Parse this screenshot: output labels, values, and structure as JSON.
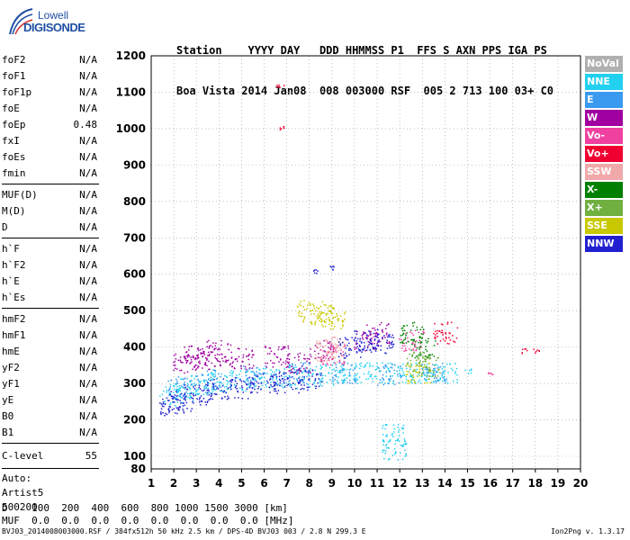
{
  "logo": {
    "line1": "Lowell",
    "line2": "DIGISONDE"
  },
  "header": {
    "line1": "Station    YYYY DAY   DDD HHMMSS P1  FFS S AXN PPS IGA PS",
    "line2": "Boa Vista 2014 Jan08  008 003000 RSF  005 2 713 100 03+ C0"
  },
  "params": {
    "group1": [
      {
        "name": "foF2",
        "value": "N/A"
      },
      {
        "name": "foF1",
        "value": "N/A"
      },
      {
        "name": "foF1p",
        "value": "N/A"
      },
      {
        "name": "foE",
        "value": "N/A"
      },
      {
        "name": "foEp",
        "value": "0.48"
      },
      {
        "name": "fxI",
        "value": "N/A"
      },
      {
        "name": "foEs",
        "value": "N/A"
      },
      {
        "name": "fmin",
        "value": "N/A"
      }
    ],
    "group2": [
      {
        "name": "MUF(D)",
        "value": "N/A"
      },
      {
        "name": "M(D)",
        "value": "N/A"
      },
      {
        "name": "D",
        "value": "N/A"
      }
    ],
    "group3": [
      {
        "name": "h`F",
        "value": "N/A"
      },
      {
        "name": "h`F2",
        "value": "N/A"
      },
      {
        "name": "h`E",
        "value": "N/A"
      },
      {
        "name": "h`Es",
        "value": "N/A"
      }
    ],
    "group4": [
      {
        "name": "hmF2",
        "value": "N/A"
      },
      {
        "name": "hmF1",
        "value": "N/A"
      },
      {
        "name": "hmE",
        "value": "N/A"
      },
      {
        "name": "yF2",
        "value": "N/A"
      },
      {
        "name": "yF1",
        "value": "N/A"
      },
      {
        "name": "yE",
        "value": "N/A"
      },
      {
        "name": "B0",
        "value": "N/A"
      },
      {
        "name": "B1",
        "value": "N/A"
      }
    ],
    "clevel": {
      "name": "C-level",
      "value": "55"
    }
  },
  "auto": {
    "line1": "Auto:",
    "line2": "Artist5",
    "line3": "500200"
  },
  "legend": [
    {
      "label": "NoVal",
      "color": "#b0b0b0"
    },
    {
      "label": "NNE",
      "color": "#22d0f0"
    },
    {
      "label": "E",
      "color": "#3a9af0"
    },
    {
      "label": "W",
      "color": "#a000a0"
    },
    {
      "label": "Vo-",
      "color": "#f040a0"
    },
    {
      "label": "Vo+",
      "color": "#f00030"
    },
    {
      "label": "SSW",
      "color": "#f0a8a8"
    },
    {
      "label": "X-",
      "color": "#008000"
    },
    {
      "label": "X+",
      "color": "#70b040"
    },
    {
      "label": "SSE",
      "color": "#c8c800"
    },
    {
      "label": "NNW",
      "color": "#2020d0"
    }
  ],
  "bottom": {
    "d_row": "D    100  200  400  600  800 1000 1500 3000 [km]",
    "muf_row": "MUF  0.0  0.0  0.0  0.0  0.0  0.0  0.0  0.0 [MHz]"
  },
  "footer": {
    "left": "BVJ03_2014008003000.RSF / 384fx512h 50 kHz 2.5 km / DPS-4D BVJ03 003 / 2.8 N 299.3 E",
    "right": "Ion2Png v. 1.3.17"
  },
  "chart_data": {
    "type": "scatter",
    "title": "",
    "xlabel": "",
    "ylabel": "",
    "xlim": [
      1,
      20
    ],
    "ylim": [
      80,
      1200
    ],
    "x_ticks": [
      1,
      2,
      3,
      4,
      5,
      6,
      7,
      8,
      9,
      10,
      11,
      12,
      13,
      14,
      15,
      16,
      17,
      18,
      19,
      20
    ],
    "y_ticks": [
      80,
      100,
      200,
      300,
      400,
      500,
      600,
      700,
      800,
      900,
      1000,
      1100,
      1200
    ],
    "grid": true,
    "legend_position": "right",
    "series": [
      {
        "name": "NNE",
        "color": "#22d0f0",
        "points": [
          [
            1.9,
            270
          ],
          [
            2.5,
            285
          ],
          [
            3.2,
            300
          ],
          [
            4.0,
            305
          ],
          [
            5.0,
            310
          ],
          [
            6.0,
            315
          ],
          [
            7.0,
            318
          ],
          [
            8.0,
            322
          ],
          [
            9.0,
            325
          ],
          [
            10.0,
            328
          ],
          [
            11.0,
            330
          ],
          [
            12.0,
            330
          ],
          [
            13.0,
            328
          ],
          [
            14.0,
            330
          ],
          [
            15.0,
            335
          ],
          [
            11.75,
            120
          ],
          [
            11.75,
            160
          ]
        ]
      },
      {
        "name": "E",
        "color": "#3a9af0",
        "points": [
          [
            2.2,
            290
          ],
          [
            3.5,
            310
          ],
          [
            5.5,
            320
          ],
          [
            7.5,
            330
          ],
          [
            9.5,
            330
          ],
          [
            11.5,
            325
          ],
          [
            13.5,
            330
          ]
        ]
      },
      {
        "name": "W",
        "color": "#a000a0",
        "points": [
          [
            2.5,
            360
          ],
          [
            3.0,
            380
          ],
          [
            3.5,
            370
          ],
          [
            4.0,
            390
          ],
          [
            5.0,
            370
          ],
          [
            6.5,
            375
          ],
          [
            7.5,
            360
          ],
          [
            8.5,
            390
          ],
          [
            10.5,
            420
          ],
          [
            11.0,
            440
          ]
        ]
      },
      {
        "name": "Vo-",
        "color": "#f040a0",
        "points": [
          [
            9.0,
            380
          ],
          [
            12.5,
            420
          ],
          [
            16.0,
            330
          ]
        ]
      },
      {
        "name": "Vo+",
        "color": "#f00030",
        "points": [
          [
            6.7,
            1115
          ],
          [
            6.7,
            1000
          ],
          [
            14.0,
            440
          ],
          [
            17.5,
            390
          ],
          [
            18.0,
            390
          ]
        ]
      },
      {
        "name": "SSW",
        "color": "#f0a8a8",
        "points": [
          [
            9.0,
            400
          ],
          [
            8.8,
            390
          ]
        ]
      },
      {
        "name": "X-",
        "color": "#008000",
        "points": [
          [
            12.5,
            440
          ],
          [
            13.0,
            400
          ]
        ]
      },
      {
        "name": "X+",
        "color": "#70b040",
        "points": [
          [
            12.8,
            360
          ],
          [
            13.2,
            350
          ]
        ]
      },
      {
        "name": "SSE",
        "color": "#c8c800",
        "points": [
          [
            8.0,
            500
          ],
          [
            8.5,
            490
          ],
          [
            9.0,
            480
          ],
          [
            12.8,
            330
          ]
        ]
      },
      {
        "name": "NNW",
        "color": "#2020d0",
        "points": [
          [
            1.9,
            240
          ],
          [
            2.3,
            250
          ],
          [
            3.0,
            270
          ],
          [
            4.0,
            285
          ],
          [
            5.0,
            290
          ],
          [
            6.0,
            300
          ],
          [
            7.0,
            305
          ],
          [
            8.0,
            310
          ],
          [
            8.3,
            610
          ],
          [
            9.0,
            620
          ],
          [
            9.8,
            400
          ],
          [
            10.5,
            420
          ],
          [
            11.2,
            410
          ]
        ]
      }
    ]
  }
}
